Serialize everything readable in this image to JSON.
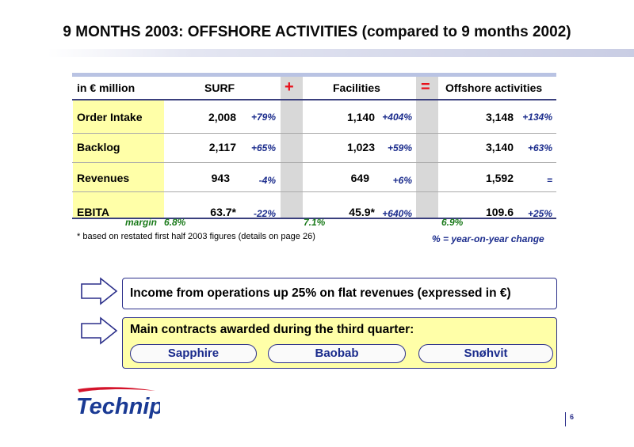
{
  "title": "9 MONTHS 2003: OFFSHORE ACTIVITIES (compared to 9 months 2002)",
  "table": {
    "header": {
      "unit": "in € million",
      "col1": "SURF",
      "op1": "+",
      "col2": "Facilities",
      "op2": "=",
      "col3": "Offshore activities"
    },
    "rows": [
      {
        "label": "Order Intake",
        "surf": "2,008",
        "surf_pct": "+79%",
        "fac": "1,140",
        "fac_pct": "+404%",
        "off": "3,148",
        "off_pct": "+134%"
      },
      {
        "label": "Backlog",
        "surf": "2,117",
        "surf_pct": "+65%",
        "fac": "1,023",
        "fac_pct": "+59%",
        "off": "3,140",
        "off_pct": "+63%"
      },
      {
        "label": "Revenues",
        "surf": "943",
        "surf_pct": "-4%",
        "fac": "649",
        "fac_pct": "+6%",
        "off": "1,592",
        "off_pct": "="
      },
      {
        "label": "EBITA",
        "surf": "63.7*",
        "surf_pct": "-22%",
        "fac": "45.9*",
        "fac_pct": "+640%",
        "off": "109.6",
        "off_pct": "+25%"
      }
    ],
    "margin": {
      "label": "margin",
      "surf": "6.8%",
      "fac": "7.1%",
      "off": "6.9%"
    },
    "footnote": "* based on restated first half 2003 figures (details on page 26)",
    "legend": "% = year-on-year change"
  },
  "callouts": {
    "first": "Income from operations up 25% on flat revenues (expressed in €)",
    "second": "Main contracts awarded during the third quarter:",
    "contracts": [
      "Sapphire",
      "Baobab",
      "Snøhvit"
    ]
  },
  "logo": "Technip",
  "page_number": "6",
  "colors": {
    "accent_blue": "#1a2b8c",
    "operator_red": "#e8101a",
    "highlight_yellow": "#ffffa8",
    "margin_green": "#1a7a1a"
  }
}
